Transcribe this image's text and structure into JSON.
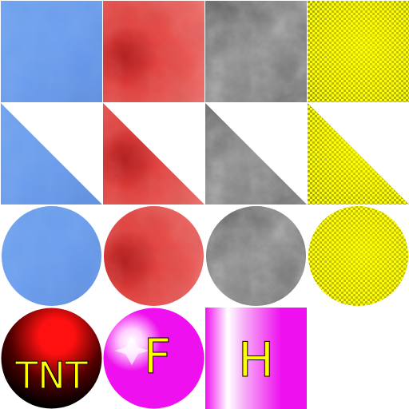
{
  "sheet": {
    "background": "#ffffff",
    "rows": [
      {
        "shape": "square",
        "tiles": [
          {
            "name": "blue-square-tile",
            "material": "blue"
          },
          {
            "name": "red-square-tile",
            "material": "red"
          },
          {
            "name": "gray-square-tile",
            "material": "gray"
          },
          {
            "name": "yellow-square-tile",
            "material": "yellow"
          }
        ]
      },
      {
        "shape": "triangle",
        "tiles": [
          {
            "name": "blue-triangle-tile",
            "material": "blue"
          },
          {
            "name": "red-triangle-tile",
            "material": "red"
          },
          {
            "name": "gray-triangle-tile",
            "material": "gray"
          },
          {
            "name": "yellow-triangle-tile",
            "material": "yellow"
          }
        ]
      },
      {
        "shape": "circle",
        "tiles": [
          {
            "name": "blue-circle-tile",
            "material": "blue"
          },
          {
            "name": "red-circle-tile",
            "material": "red"
          },
          {
            "name": "gray-circle-tile",
            "material": "gray"
          },
          {
            "name": "yellow-circle-tile",
            "material": "yellow"
          }
        ]
      }
    ]
  },
  "materials": {
    "blue": {
      "base": "#6a9ef0",
      "light": "#7aaaf5",
      "dark": "#5a84d8"
    },
    "red": {
      "base": "#e8433f",
      "light": "#f06a66",
      "dark": "#b71010"
    },
    "gray": {
      "base": "#7a7a7a",
      "light": "#a8a8a8",
      "dark": "#3a3a3a"
    },
    "yellow": {
      "base": "#eeee00",
      "light": "#ffff20",
      "dark": "#7a7a00"
    }
  },
  "specials": {
    "tnt": {
      "label": "TNT",
      "text_color": "#ffff00",
      "glow": "#ff1010",
      "bg": "#000000"
    },
    "f": {
      "label": "F",
      "text_color": "#ffee00",
      "base": "#ee10ee",
      "highlight": "#ffffff"
    },
    "h": {
      "label": "H",
      "text_color": "#ffee00",
      "base": "#ee10ee",
      "highlight": "#ffffff"
    }
  }
}
